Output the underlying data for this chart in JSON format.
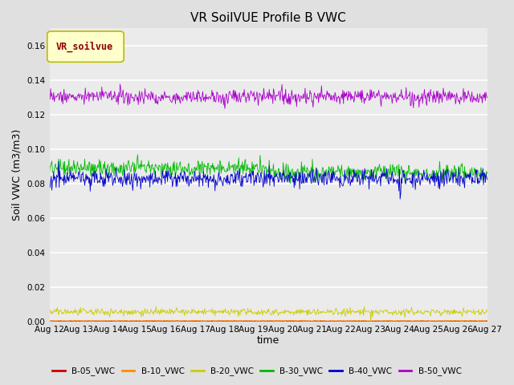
{
  "title": "VR SoilVUE Profile B VWC",
  "xlabel": "time",
  "ylabel": "Soil VWC (m3/m3)",
  "ylim": [
    0,
    0.17
  ],
  "yticks": [
    0.0,
    0.02,
    0.04,
    0.06,
    0.08,
    0.1,
    0.12,
    0.14,
    0.16
  ],
  "date_start": "2023-08-12",
  "date_end": "2023-08-27",
  "n_points": 720,
  "series": {
    "B-05_VWC": {
      "color": "#cc0000",
      "mean": 0.0002,
      "noise": 8e-05,
      "label": "B-05_VWC"
    },
    "B-10_VWC": {
      "color": "#ff8c00",
      "mean": 0.0004,
      "noise": 0.0001,
      "label": "B-10_VWC"
    },
    "B-20_VWC": {
      "color": "#cccc00",
      "mean": 0.0055,
      "noise": 0.001,
      "label": "B-20_VWC"
    },
    "B-30_VWC": {
      "color": "#00bb00",
      "mean": 0.089,
      "noise": 0.0025,
      "label": "B-30_VWC"
    },
    "B-40_VWC": {
      "color": "#0000cc",
      "mean": 0.083,
      "noise": 0.0025,
      "label": "B-40_VWC"
    },
    "B-50_VWC": {
      "color": "#aa00cc",
      "mean": 0.1305,
      "noise": 0.0022,
      "label": "B-50_VWC"
    }
  },
  "legend_label": "VR_soilvue",
  "legend_text_color": "#8b0000",
  "legend_bg_color": "#ffffcc",
  "legend_edge_color": "#bbbb00",
  "bg_color": "#e0e0e0",
  "plot_bg_color": "#ebebeb",
  "grid_color": "#ffffff",
  "title_fontsize": 11,
  "axis_fontsize": 9,
  "tick_fontsize": 7.5
}
